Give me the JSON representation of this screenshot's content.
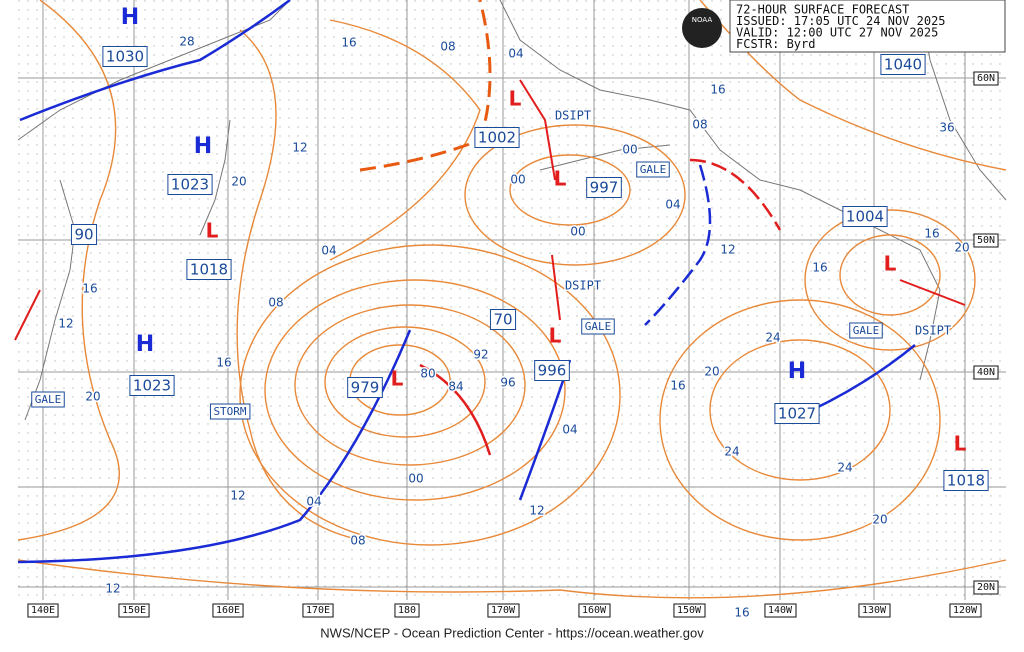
{
  "header": {
    "lines": [
      "72-HOUR SURFACE FORECAST",
      "ISSUED: 17:05 UTC 24 NOV 2025",
      "VALID:  12:00 UTC 27 NOV 2025",
      "FCSTR:  Byrd"
    ],
    "logo": "NOAA"
  },
  "lon_labels": [
    "140E",
    "150E",
    "160E",
    "170E",
    "180",
    "170W",
    "160W",
    "150W",
    "140W",
    "130W",
    "120W"
  ],
  "lat_labels": [
    "60N",
    "50N",
    "40N",
    "20N"
  ],
  "highs": [
    {
      "letter": "H",
      "pressure": "1030"
    },
    {
      "letter": "H",
      "pressure": "1023"
    },
    {
      "letter": "H",
      "pressure": "1023"
    },
    {
      "letter": "H",
      "pressure": "1027"
    }
  ],
  "lows": [
    {
      "letter": "L",
      "pressure": "1002"
    },
    {
      "letter": "L",
      "pressure": "997"
    },
    {
      "letter": "L",
      "pressure": "1018"
    },
    {
      "letter": "L",
      "pressure": "996"
    },
    {
      "letter": "L",
      "pressure": "979"
    },
    {
      "letter": "L",
      "pressure": "1004"
    },
    {
      "letter": "L",
      "pressure": "1018"
    }
  ],
  "other_pressures": [
    "1040",
    "90",
    "70"
  ],
  "isobar_labels": [
    "28",
    "16",
    "08",
    "04",
    "12",
    "20",
    "04",
    "08",
    "16",
    "20",
    "12",
    "16",
    "12",
    "04",
    "08",
    "00",
    "04",
    "12",
    "16",
    "20",
    "24",
    "24",
    "24",
    "20",
    "16",
    "12",
    "16",
    "20",
    "16",
    "36",
    "16",
    "08",
    "04",
    "00",
    "00",
    "00",
    "12",
    "96",
    "92",
    "84",
    "80"
  ],
  "warnings": [
    "STORM",
    "GALE",
    "GALE",
    "GALE",
    "GALE"
  ],
  "dissipating": [
    "DSIPT",
    "DSIPT",
    "DSIPT"
  ],
  "footer": "NWS/NCEP - Ocean Prediction Center - https://ocean.weather.gov"
}
